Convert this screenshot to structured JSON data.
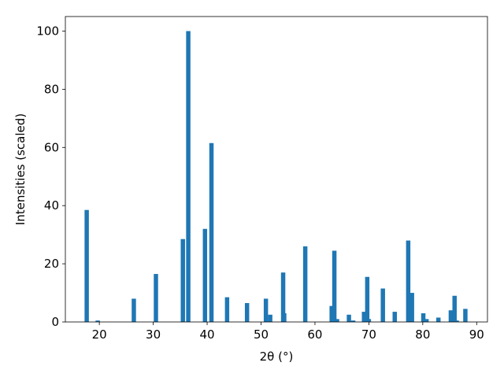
{
  "chart_data": {
    "type": "bar",
    "xlabel": "2θ (°)",
    "ylabel": "Intensities (scaled)",
    "x": [
      17.66,
      19.7,
      26.4,
      30.5,
      35.5,
      36.5,
      39.6,
      40.8,
      43.7,
      47.4,
      50.9,
      51.7,
      54.1,
      54.3,
      58.2,
      63.1,
      63.6,
      64.1,
      66.3,
      67.1,
      69.1,
      69.7,
      70.0,
      72.6,
      74.8,
      77.3,
      78.0,
      80.1,
      80.7,
      82.9,
      85.2,
      85.9,
      86.3,
      87.9
    ],
    "values": [
      38.5,
      0.5,
      8,
      16.5,
      28.5,
      100,
      32,
      61.5,
      8.5,
      6.5,
      8,
      2.5,
      17,
      3,
      26,
      5.5,
      24.5,
      1,
      2.5,
      0.5,
      3.5,
      15.5,
      1,
      11.5,
      3.5,
      28,
      10,
      3,
      1,
      1.5,
      4,
      9,
      0.5,
      4.5
    ],
    "color": "#1f77b4",
    "bar_width": 0.8,
    "xlim": [
      13.7,
      92.0
    ],
    "xticks": [
      20,
      30,
      40,
      50,
      60,
      70,
      80,
      90
    ],
    "ylim": [
      0,
      105
    ],
    "yticks": [
      0,
      20,
      40,
      60,
      80,
      100
    ],
    "grid": false
  }
}
